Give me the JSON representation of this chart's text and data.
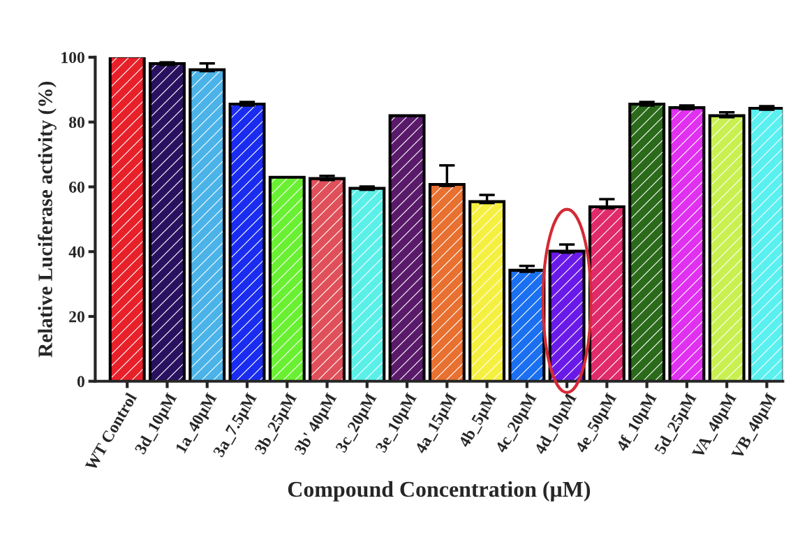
{
  "chart_data": {
    "type": "bar",
    "xlabel": "Compound Concentration (μM)",
    "ylabel": "Relative Luciferase activity (%)",
    "categories": [
      "WT Control",
      "3d_10μM",
      "1a_40μM",
      "3a_7.5μM",
      "3b_25μM",
      "3b' 40μM",
      "3c_20μM",
      "3e_10μM",
      "4a_15μM",
      "4b_5μM",
      "4c_20μM",
      "4d_10μM",
      "4e_50μM",
      "4f_10μM",
      "5d_25μM",
      "VA_40μM",
      "VB_40μM"
    ],
    "values": [
      99.8,
      97.6,
      95.7,
      85.1,
      62.5,
      62.1,
      59.1,
      81.5,
      60.3,
      55.0,
      33.8,
      39.7,
      53.4,
      85.1,
      84.0,
      81.5,
      83.8
    ],
    "errors": [
      null,
      0.8,
      2.4,
      1.1,
      null,
      1.3,
      1.0,
      null,
      6.3,
      2.5,
      1.8,
      2.5,
      2.8,
      1.1,
      1.1,
      1.5,
      1.1
    ],
    "colors": [
      "#e8202a",
      "#2a1160",
      "#4bb3e8",
      "#1a2cf0",
      "#6af032",
      "#e0505a",
      "#5af0e8",
      "#5a1a6a",
      "#e87030",
      "#f5f040",
      "#1a70f0",
      "#6a1ae8",
      "#e02a6a",
      "#2a6a1a",
      "#e030f0",
      "#c8f050",
      "#5af0f0"
    ],
    "ylim": [
      0,
      100
    ],
    "yticks": [
      0,
      20,
      40,
      60,
      80,
      100
    ],
    "grid": false,
    "legend": false
  }
}
